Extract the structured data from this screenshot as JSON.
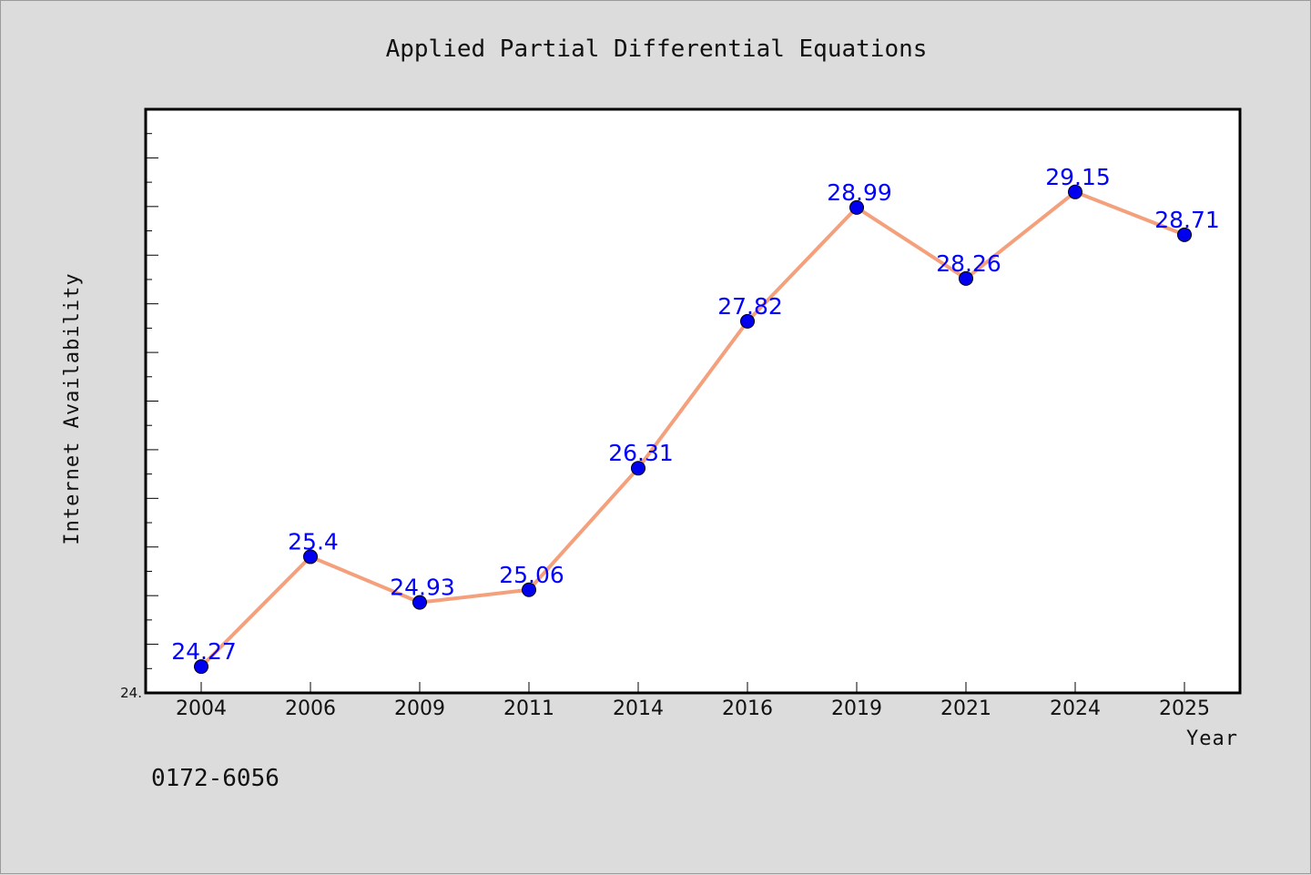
{
  "chart_data": {
    "type": "line",
    "title": "Applied Partial Differential Equations",
    "xlabel": "Year",
    "ylabel": "Internet Availability",
    "categories": [
      "2004",
      "2006",
      "2009",
      "2011",
      "2014",
      "2016",
      "2019",
      "2021",
      "2024",
      "2025"
    ],
    "series": [
      {
        "values": [
          24.27,
          25.4,
          24.93,
          25.06,
          26.31,
          27.82,
          28.99,
          28.26,
          29.15,
          28.71
        ]
      }
    ],
    "data_labels": [
      "24.27",
      "25.4",
      "24.93",
      "25.06",
      "26.31",
      "27.82",
      "28.99",
      "28.26",
      "29.15",
      "28.71"
    ],
    "ylim": [
      24.0,
      30.0
    ],
    "ytick_labels": [
      "24."
    ],
    "grid": false,
    "legend": "none",
    "line_color": "#f4a07c",
    "marker_color": "#0000ee",
    "label_color": "#0000ff"
  },
  "footer": {
    "code": "0172-6056"
  }
}
